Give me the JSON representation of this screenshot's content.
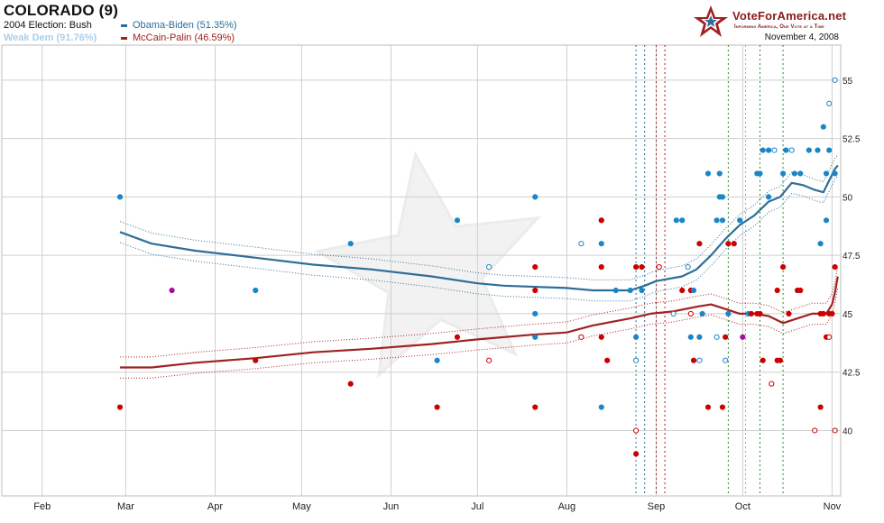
{
  "header": {
    "title": "COLORADO (9)",
    "prev_election": "2004 Election: Bush",
    "lean": "Weak Dem (91.76%)"
  },
  "logo": {
    "name": "VoteForAmerica.net",
    "tagline": "Informing America, One Vote at a Time",
    "date": "November 4, 2008"
  },
  "colors": {
    "obama": "#2e6e99",
    "obama_dot": "#1a86c8",
    "mccain": "#a02121",
    "mccain_dot": "#cc0000",
    "lean": "#a8d0ec",
    "grid": "#cfcfcf",
    "tie_dot": "#a0109f"
  },
  "chart_data": {
    "type": "line",
    "x_axis": {
      "labels": [
        "Feb",
        "Mar",
        "Apr",
        "May",
        "Jun",
        "Jul",
        "Aug",
        "Sep",
        "Oct",
        "Nov"
      ],
      "range": [
        "2008-01-18",
        "2008-11-04"
      ]
    },
    "y_axis": {
      "ticks": [
        "40",
        "42.5",
        "45",
        "47.5",
        "50",
        "52.5",
        "55"
      ],
      "range": [
        37.2,
        56.5
      ]
    },
    "series": [
      {
        "name": "Obama-Biden (51.35%)",
        "color": "#2e6e99",
        "points": [
          [
            "2008-02-28",
            48.5
          ],
          [
            "2008-03-10",
            48.0
          ],
          [
            "2008-03-25",
            47.7
          ],
          [
            "2008-04-15",
            47.4
          ],
          [
            "2008-05-05",
            47.1
          ],
          [
            "2008-05-25",
            46.9
          ],
          [
            "2008-06-15",
            46.6
          ],
          [
            "2008-07-01",
            46.3
          ],
          [
            "2008-07-10",
            46.2
          ],
          [
            "2008-08-01",
            46.1
          ],
          [
            "2008-08-10",
            46.0
          ],
          [
            "2008-08-23",
            46.0
          ],
          [
            "2008-08-28",
            46.2
          ],
          [
            "2008-09-01",
            46.4
          ],
          [
            "2008-09-10",
            46.6
          ],
          [
            "2008-09-15",
            46.9
          ],
          [
            "2008-09-20",
            47.5
          ],
          [
            "2008-09-25",
            48.2
          ],
          [
            "2008-09-30",
            48.8
          ],
          [
            "2008-10-05",
            49.2
          ],
          [
            "2008-10-10",
            49.8
          ],
          [
            "2008-10-14",
            50.0
          ],
          [
            "2008-10-18",
            50.6
          ],
          [
            "2008-10-22",
            50.5
          ],
          [
            "2008-10-26",
            50.3
          ],
          [
            "2008-10-29",
            50.2
          ],
          [
            "2008-10-31",
            50.7
          ],
          [
            "2008-11-02",
            51.2
          ],
          [
            "2008-11-03",
            51.35
          ]
        ]
      },
      {
        "name": "McCain-Palin (46.59%)",
        "color": "#a02121",
        "points": [
          [
            "2008-02-28",
            42.7
          ],
          [
            "2008-03-10",
            42.7
          ],
          [
            "2008-03-25",
            42.9
          ],
          [
            "2008-04-15",
            43.1
          ],
          [
            "2008-05-05",
            43.35
          ],
          [
            "2008-05-25",
            43.5
          ],
          [
            "2008-06-15",
            43.7
          ],
          [
            "2008-07-01",
            43.9
          ],
          [
            "2008-07-20",
            44.1
          ],
          [
            "2008-08-01",
            44.2
          ],
          [
            "2008-08-10",
            44.5
          ],
          [
            "2008-08-23",
            44.8
          ],
          [
            "2008-08-30",
            45.0
          ],
          [
            "2008-09-07",
            45.1
          ],
          [
            "2008-09-15",
            45.3
          ],
          [
            "2008-09-20",
            45.4
          ],
          [
            "2008-09-25",
            45.2
          ],
          [
            "2008-09-30",
            45.0
          ],
          [
            "2008-10-05",
            45.0
          ],
          [
            "2008-10-10",
            44.9
          ],
          [
            "2008-10-15",
            44.6
          ],
          [
            "2008-10-20",
            44.8
          ],
          [
            "2008-10-25",
            45.0
          ],
          [
            "2008-10-30",
            45.0
          ],
          [
            "2008-11-01",
            45.4
          ],
          [
            "2008-11-02",
            45.9
          ],
          [
            "2008-11-03",
            46.59
          ]
        ]
      }
    ],
    "event_lines": [
      {
        "date": "2008-08-25",
        "color": "#2e6e99"
      },
      {
        "date": "2008-08-28",
        "color": "#2e6e99"
      },
      {
        "date": "2008-09-01",
        "color": "#a02121"
      },
      {
        "date": "2008-09-04",
        "color": "#a02121"
      },
      {
        "date": "2008-09-26",
        "color": "#2a8a2a"
      },
      {
        "date": "2008-10-02",
        "color": "#e0a030"
      },
      {
        "date": "2008-10-07",
        "color": "#2a8a2a"
      },
      {
        "date": "2008-10-15",
        "color": "#2a8a2a"
      }
    ],
    "polls": [
      [
        "2008-02-28",
        50,
        "d",
        true
      ],
      [
        "2008-02-28",
        41,
        "r",
        true
      ],
      [
        "2008-03-17",
        46,
        "t",
        true
      ],
      [
        "2008-04-15",
        46,
        "d",
        true
      ],
      [
        "2008-04-15",
        43,
        "r",
        true
      ],
      [
        "2008-05-18",
        48,
        "d",
        true
      ],
      [
        "2008-05-18",
        42,
        "r",
        true
      ],
      [
        "2008-06-17",
        43,
        "d",
        true
      ],
      [
        "2008-06-17",
        41,
        "r",
        true
      ],
      [
        "2008-06-24",
        49,
        "d",
        true
      ],
      [
        "2008-06-24",
        44,
        "r",
        true
      ],
      [
        "2008-07-05",
        47,
        "d",
        false
      ],
      [
        "2008-07-05",
        43,
        "r",
        false
      ],
      [
        "2008-07-21",
        50,
        "d",
        true
      ],
      [
        "2008-07-21",
        45,
        "d",
        true
      ],
      [
        "2008-07-21",
        44,
        "d",
        true
      ],
      [
        "2008-07-21",
        47,
        "r",
        true
      ],
      [
        "2008-07-21",
        46,
        "r",
        true
      ],
      [
        "2008-07-21",
        41,
        "r",
        true
      ],
      [
        "2008-08-06",
        48,
        "d",
        false
      ],
      [
        "2008-08-06",
        44,
        "r",
        false
      ],
      [
        "2008-08-13",
        49,
        "d",
        true
      ],
      [
        "2008-08-13",
        48,
        "d",
        true
      ],
      [
        "2008-08-13",
        41,
        "d",
        true
      ],
      [
        "2008-08-13",
        49,
        "r",
        true
      ],
      [
        "2008-08-13",
        47,
        "r",
        true
      ],
      [
        "2008-08-13",
        44,
        "r",
        true
      ],
      [
        "2008-08-15",
        43,
        "r",
        true
      ],
      [
        "2008-08-18",
        46,
        "d",
        true
      ],
      [
        "2008-08-23",
        46,
        "d",
        true
      ],
      [
        "2008-08-25",
        44,
        "d",
        true
      ],
      [
        "2008-08-25",
        43,
        "d",
        false
      ],
      [
        "2008-08-25",
        47,
        "r",
        true
      ],
      [
        "2008-08-25",
        40,
        "r",
        false
      ],
      [
        "2008-08-25",
        39,
        "r",
        true
      ],
      [
        "2008-08-27",
        46,
        "d",
        true
      ],
      [
        "2008-08-27",
        47,
        "r",
        true
      ],
      [
        "2008-09-02",
        47,
        "r",
        false
      ],
      [
        "2008-09-07",
        45,
        "d",
        false
      ],
      [
        "2008-09-08",
        49,
        "d",
        true
      ],
      [
        "2008-09-10",
        49,
        "d",
        true
      ],
      [
        "2008-09-10",
        46,
        "r",
        true
      ],
      [
        "2008-09-12",
        47,
        "d",
        false
      ],
      [
        "2008-09-13",
        46,
        "r",
        true
      ],
      [
        "2008-09-13",
        44,
        "d",
        true
      ],
      [
        "2008-09-13",
        45,
        "r",
        false
      ],
      [
        "2008-09-14",
        46,
        "d",
        true
      ],
      [
        "2008-09-14",
        43,
        "r",
        true
      ],
      [
        "2008-09-16",
        48,
        "r",
        true
      ],
      [
        "2008-09-16",
        44,
        "d",
        true
      ],
      [
        "2008-09-16",
        43,
        "d",
        false
      ],
      [
        "2008-09-17",
        45,
        "d",
        true
      ],
      [
        "2008-09-19",
        51,
        "d",
        true
      ],
      [
        "2008-09-19",
        41,
        "r",
        true
      ],
      [
        "2008-09-22",
        44,
        "d",
        false
      ],
      [
        "2008-09-22",
        49,
        "d",
        true
      ],
      [
        "2008-09-23",
        51,
        "d",
        true
      ],
      [
        "2008-09-23",
        50,
        "d",
        true
      ],
      [
        "2008-09-24",
        50,
        "d",
        true
      ],
      [
        "2008-09-24",
        49,
        "d",
        true
      ],
      [
        "2008-09-24",
        41,
        "r",
        true
      ],
      [
        "2008-09-25",
        44,
        "r",
        true
      ],
      [
        "2008-09-25",
        43,
        "d",
        false
      ],
      [
        "2008-09-26",
        48,
        "r",
        true
      ],
      [
        "2008-09-26",
        45,
        "d",
        true
      ],
      [
        "2008-09-28",
        48,
        "r",
        true
      ],
      [
        "2008-09-30",
        49,
        "d",
        true
      ],
      [
        "2008-10-01",
        44,
        "t",
        true
      ],
      [
        "2008-10-03",
        45,
        "d",
        true
      ],
      [
        "2008-10-04",
        45,
        "r",
        true
      ],
      [
        "2008-10-06",
        51,
        "d",
        true
      ],
      [
        "2008-10-06",
        45,
        "r",
        true
      ],
      [
        "2008-10-07",
        51,
        "d",
        true
      ],
      [
        "2008-10-07",
        45,
        "r",
        true
      ],
      [
        "2008-10-08",
        52,
        "d",
        true
      ],
      [
        "2008-10-08",
        43,
        "r",
        true
      ],
      [
        "2008-10-10",
        52,
        "d",
        true
      ],
      [
        "2008-10-10",
        50,
        "d",
        true
      ],
      [
        "2008-10-11",
        42,
        "r",
        false
      ],
      [
        "2008-10-12",
        52,
        "d",
        false
      ],
      [
        "2008-10-13",
        46,
        "r",
        true
      ],
      [
        "2008-10-13",
        43,
        "r",
        true
      ],
      [
        "2008-10-14",
        43,
        "r",
        true
      ],
      [
        "2008-10-15",
        51,
        "d",
        true
      ],
      [
        "2008-10-15",
        47,
        "r",
        true
      ],
      [
        "2008-10-16",
        52,
        "d",
        true
      ],
      [
        "2008-10-17",
        45,
        "r",
        true
      ],
      [
        "2008-10-18",
        52,
        "d",
        false
      ],
      [
        "2008-10-19",
        51,
        "d",
        true
      ],
      [
        "2008-10-20",
        46,
        "r",
        true
      ],
      [
        "2008-10-21",
        51,
        "d",
        true
      ],
      [
        "2008-10-21",
        46,
        "r",
        true
      ],
      [
        "2008-10-24",
        52,
        "d",
        true
      ],
      [
        "2008-10-26",
        40,
        "r",
        false
      ],
      [
        "2008-10-27",
        52,
        "d",
        true
      ],
      [
        "2008-10-28",
        48,
        "d",
        true
      ],
      [
        "2008-10-28",
        45,
        "r",
        true
      ],
      [
        "2008-10-28",
        41,
        "r",
        true
      ],
      [
        "2008-10-29",
        53,
        "d",
        true
      ],
      [
        "2008-10-29",
        45,
        "r",
        true
      ],
      [
        "2008-10-30",
        51,
        "d",
        true
      ],
      [
        "2008-10-30",
        49,
        "d",
        true
      ],
      [
        "2008-10-30",
        44,
        "r",
        true
      ],
      [
        "2008-10-31",
        54,
        "d",
        false
      ],
      [
        "2008-10-31",
        52,
        "d",
        true
      ],
      [
        "2008-10-31",
        45,
        "r",
        true
      ],
      [
        "2008-10-31",
        44,
        "r",
        false
      ],
      [
        "2008-11-01",
        45,
        "r",
        true
      ],
      [
        "2008-11-02",
        47,
        "r",
        true
      ],
      [
        "2008-11-02",
        51,
        "d",
        true
      ],
      [
        "2008-11-02",
        55,
        "d",
        false
      ],
      [
        "2008-11-02",
        40,
        "r",
        false
      ]
    ]
  }
}
